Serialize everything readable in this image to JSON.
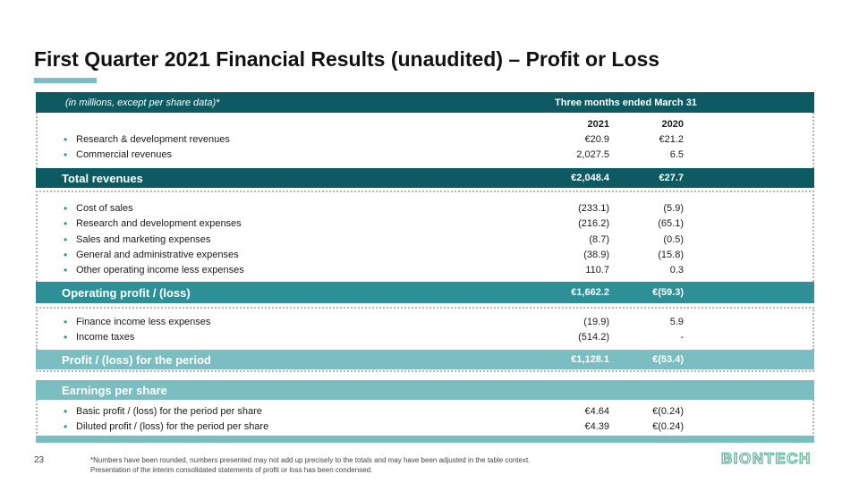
{
  "title": "First Quarter 2021 Financial Results (unaudited) – Profit or Loss",
  "header": {
    "units": "(in millions, except per share data)*",
    "period": "Three months ended March 31"
  },
  "years": [
    "2021",
    "2020"
  ],
  "revenue_rows": [
    {
      "label": "Research & development revenues",
      "v2021": "€20.9",
      "v2020": "€21.2"
    },
    {
      "label": "Commercial revenues",
      "v2021": "2,027.5",
      "v2020": "6.5"
    }
  ],
  "total_revenues": {
    "label": "Total revenues",
    "v2021": "€2,048.4",
    "v2020": "€27.7"
  },
  "expense_rows": [
    {
      "label": "Cost of sales",
      "v2021": "(233.1)",
      "v2020": "(5.9)"
    },
    {
      "label": "Research and development expenses",
      "v2021": "(216.2)",
      "v2020": "(65.1)"
    },
    {
      "label": "Sales and marketing expenses",
      "v2021": "(8.7)",
      "v2020": "(0.5)"
    },
    {
      "label": "General and administrative expenses",
      "v2021": "(38.9)",
      "v2020": "(15.8)"
    },
    {
      "label": "Other operating income less expenses",
      "v2021": "110.7",
      "v2020": "0.3"
    }
  ],
  "operating_profit": {
    "label": "Operating profit / (loss)",
    "v2021": "€1,662.2",
    "v2020": "€(59.3)"
  },
  "finance_rows": [
    {
      "label": "Finance income less expenses",
      "v2021": "(19.9)",
      "v2020": "5.9"
    },
    {
      "label": "Income taxes",
      "v2021": "(514.2)",
      "v2020": "-"
    }
  ],
  "profit_period": {
    "label": "Profit / (loss) for the period",
    "v2021": "€1,128.1",
    "v2020": "€(53.4)"
  },
  "eps_header": {
    "label": "Earnings per share"
  },
  "eps_rows": [
    {
      "label": "Basic profit / (loss) for the period per share",
      "v2021": "€4.64",
      "v2020": "€(0.24)"
    },
    {
      "label": "Diluted profit / (loss) for the period per share",
      "v2021": "€4.39",
      "v2020": "€(0.24)"
    }
  ],
  "page_number": "23",
  "footnote": {
    "line1": "*Numbers have been rounded, numbers presented may not add up precisely to the totals and may have been adjusted in the table context.",
    "line2": "Presentation of the interim consolidated statements of profit or loss has been condensed."
  },
  "logo_text": "BIONTECH",
  "colors": {
    "dark_teal": "#0e5a62",
    "mid_teal": "#2f8f97",
    "light_teal": "#7abec1"
  }
}
